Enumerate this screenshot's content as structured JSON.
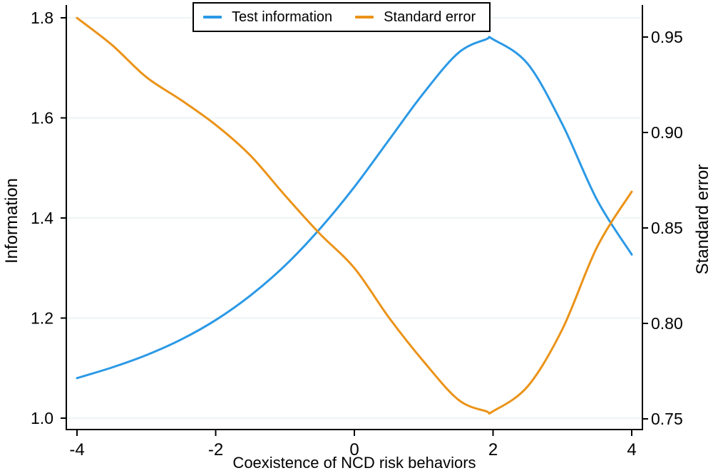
{
  "figure": {
    "background": "#ffffff",
    "axis_color": "#000000",
    "grid_color": "#e7f0f2",
    "text_color": "#000000"
  },
  "legend": {
    "position": "top-center",
    "items": [
      {
        "label": "Test information",
        "color": "#2b99e6"
      },
      {
        "label": "Standard error",
        "color": "#eb9318"
      }
    ]
  },
  "chart_data": {
    "type": "line",
    "title": "",
    "xlabel": "Coexistence of NCD risk behaviors",
    "grid": "horizontal",
    "legend_position": "top-center",
    "x_axis": {
      "range": [
        -4,
        4
      ],
      "ticks": [
        -4,
        -2,
        0,
        2,
        4
      ],
      "tick_labels": [
        "-4",
        "-2",
        "0",
        "2",
        "4"
      ]
    },
    "left_axis": {
      "title": "Information",
      "range": [
        1.0,
        1.8
      ],
      "ticks": [
        1.0,
        1.2,
        1.4,
        1.6,
        1.8
      ],
      "tick_labels": [
        "1.0",
        "1.2",
        "1.4",
        "1.6",
        "1.8"
      ]
    },
    "right_axis": {
      "title": "Standard error",
      "range": [
        0.75,
        0.95
      ],
      "ticks": [
        0.75,
        0.8,
        0.85,
        0.9,
        0.95
      ],
      "tick_labels": [
        "0.75",
        "0.80",
        "0.85",
        "0.90",
        "0.95"
      ]
    },
    "x": [
      -4,
      -3.5,
      -3,
      -2.5,
      -2,
      -1.5,
      -1,
      -0.5,
      0,
      0.5,
      1,
      1.5,
      1.9,
      2,
      2.5,
      3,
      3.5,
      4
    ],
    "series": [
      {
        "name": "Test information",
        "axis": "left",
        "color": "#2b99e6",
        "values": [
          1.08,
          1.101,
          1.126,
          1.157,
          1.196,
          1.245,
          1.305,
          1.378,
          1.462,
          1.556,
          1.65,
          1.73,
          1.757,
          1.757,
          1.708,
          1.587,
          1.436,
          1.327
        ]
      },
      {
        "name": "Standard error",
        "axis": "right",
        "color": "#eb9318",
        "values": [
          0.96,
          0.946,
          0.929,
          0.917,
          0.904,
          0.888,
          0.867,
          0.847,
          0.829,
          0.803,
          0.78,
          0.76,
          0.754,
          0.754,
          0.767,
          0.797,
          0.84,
          0.869
        ]
      }
    ]
  }
}
